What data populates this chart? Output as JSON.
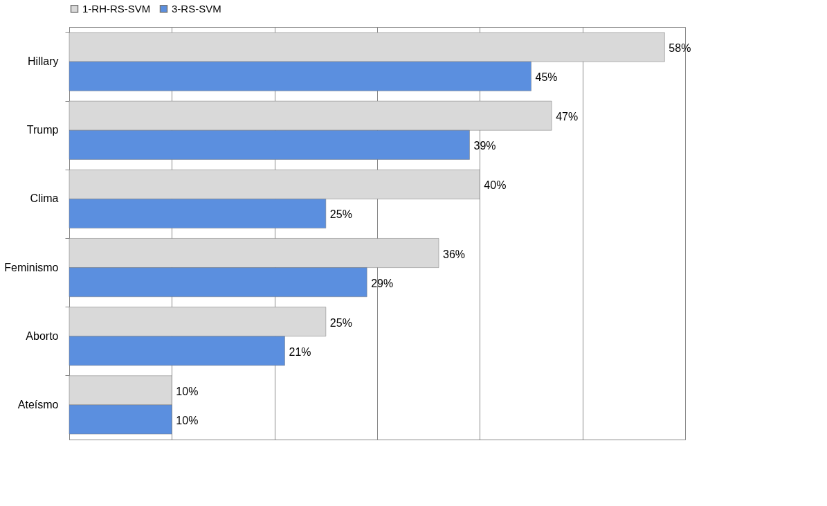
{
  "chart_data": {
    "type": "bar",
    "orientation": "horizontal",
    "categories": [
      "Hillary",
      "Trump",
      "Clima",
      "Feminismo",
      "Aborto",
      "Ateísmo"
    ],
    "series": [
      {
        "name": "1-RH-RS-SVM",
        "color": "#d9d9d9",
        "values": [
          58,
          47,
          40,
          36,
          25,
          10
        ],
        "value_labels": [
          "58%",
          "47%",
          "40%",
          "36%",
          "25%",
          "10%"
        ]
      },
      {
        "name": "3-RS-SVM",
        "color": "#5b8fdf",
        "values": [
          45,
          39,
          25,
          29,
          21,
          10
        ],
        "value_labels": [
          "45%",
          "39%",
          "25%",
          "29%",
          "21%",
          "10%"
        ]
      }
    ],
    "xlim": [
      0,
      60
    ],
    "xticks": [
      {
        "value": 0,
        "label": null
      },
      {
        "value": 10,
        "label": null
      },
      {
        "value": 20,
        "label": null
      },
      {
        "value": 30,
        "label": null
      },
      {
        "value": 40,
        "label": null
      },
      {
        "value": 50,
        "label": null
      },
      {
        "value": 60,
        "label": null
      }
    ],
    "tick_labels": "y",
    "grid": "x",
    "legend": "top"
  }
}
